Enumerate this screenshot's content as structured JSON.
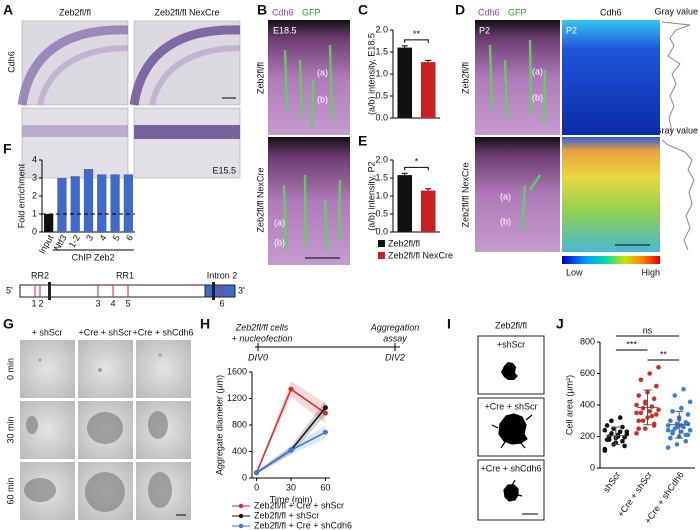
{
  "figure": {
    "letters": [
      "A",
      "B",
      "C",
      "D",
      "E",
      "F",
      "G",
      "H",
      "I",
      "J"
    ],
    "A": {
      "stain": "Cdh6",
      "col_titles": [
        "Zeb2fl/fl",
        "Zeb2fl/fl NexCre"
      ],
      "stage": "E15.5"
    },
    "B": {
      "channels": [
        "Cdh6",
        "GFP"
      ],
      "stage": "E18.5",
      "row_labels": [
        "Zeb2fl/fl",
        "Zeb2fl/fl NexCre"
      ],
      "regions": [
        "(a)",
        "(b)"
      ]
    },
    "CE_legend": [
      "Zeb2fl/fl",
      "Zeb2fl/fl NexCre"
    ],
    "D": {
      "channels": [
        "Cdh6",
        "GFP"
      ],
      "stain": "Cdh6",
      "stage": "P2",
      "profile_label": "Gray value",
      "scale": [
        "Low",
        "High"
      ],
      "row_labels": [
        "Zeb2fl/fl",
        "Zeb2fl/fl NexCre"
      ],
      "regions": [
        "(a)",
        "(b)"
      ]
    },
    "F_diagram": {
      "ends": [
        "5'",
        "3'"
      ],
      "regions": [
        "RR2",
        "RR1",
        "Intron 2"
      ],
      "sites": [
        "1",
        "2",
        "3",
        "4",
        "5",
        "6"
      ]
    },
    "G": {
      "columns": [
        "+ shScr",
        "+Cre + shScr",
        "+Cre + shCdh6"
      ],
      "rows": [
        "0 min",
        "30 min",
        "60 min"
      ]
    },
    "H_timeline": {
      "steps": [
        [
          "Zeb2fl/fl cells",
          "+ nucleofection"
        ],
        [
          "Aggregation",
          "assay"
        ]
      ],
      "days": [
        "DIV0",
        "DIV2"
      ]
    },
    "I": {
      "title": "Zeb2fl/fl",
      "rows": [
        "+shScr",
        "+Cre + shScr",
        "+Cre + shCdh6"
      ]
    }
  },
  "chart_data": [
    {
      "type": "bar",
      "ylabel": "(a/b) intensity, E18.5",
      "categories": [
        null,
        null
      ],
      "values": [
        1.6,
        1.27
      ],
      "errors": [
        0.04,
        0.04
      ],
      "colors": [
        "#111111",
        "#cc2020"
      ],
      "ylim": [
        0,
        2
      ],
      "yticks": [
        {
          "value": 0,
          "label": "0.0"
        },
        {
          "value": 0.5,
          "label": "0.5"
        },
        {
          "value": 1,
          "label": "1.0"
        },
        {
          "value": 1.5,
          "label": "1.5"
        },
        {
          "value": 2,
          "label": "2.0"
        }
      ],
      "significance": "**"
    },
    {
      "type": "bar",
      "ylabel": "(a/b) intensity, P2",
      "categories": [
        null,
        null
      ],
      "values": [
        1.58,
        1.15
      ],
      "errors": [
        0.05,
        0.05
      ],
      "colors": [
        "#111111",
        "#cc2020"
      ],
      "ylim": [
        0,
        2
      ],
      "yticks": [
        {
          "value": 0,
          "label": "0.0"
        },
        {
          "value": 0.5,
          "label": "0.5"
        },
        {
          "value": 1,
          "label": "1.0"
        },
        {
          "value": 1.5,
          "label": "1.5"
        },
        {
          "value": 2,
          "label": "2.0"
        }
      ],
      "significance": "*"
    },
    {
      "type": "bar",
      "ylabel": "Fold enrichment",
      "categories": [
        "Input",
        "Ntf3",
        "1-2",
        "3",
        "4",
        "5",
        "6"
      ],
      "group_label": "ChIP Zeb2",
      "values": [
        1,
        3.0,
        3.1,
        3.5,
        3.2,
        3.2,
        3.2
      ],
      "colors": [
        "#111111",
        "#4169c8",
        "#4169c8",
        "#4169c8",
        "#4169c8",
        "#4169c8",
        "#4169c8"
      ],
      "ylim": [
        0,
        4
      ],
      "yticks": [
        0,
        1,
        2,
        3,
        4
      ],
      "reference_line": 1
    },
    {
      "type": "line",
      "xlabel": "Time (min)",
      "ylabel": "Aggregate diameter (µm)",
      "x": [
        0,
        30,
        60
      ],
      "xlim": [
        -4,
        64
      ],
      "xticks": [
        0,
        30,
        60
      ],
      "ylim": [
        0,
        1600
      ],
      "yticks": [
        0,
        400,
        800,
        1200,
        1600
      ],
      "series": [
        {
          "name": "Zeb2fl/fl + Cre + shScr",
          "color": "#d42a2a",
          "values": [
            80,
            1340,
            980
          ],
          "errors": [
            20,
            120,
            150
          ]
        },
        {
          "name": "Zeb2fl/fl + shScr",
          "color": "#111111",
          "values": [
            80,
            420,
            1060
          ],
          "errors": [
            20,
            60,
            110
          ]
        },
        {
          "name": "Zeb2fl/fl + Cre + shCdh6",
          "color": "#3f78d0",
          "values": [
            80,
            420,
            690
          ],
          "errors": [
            20,
            60,
            100
          ]
        }
      ]
    },
    {
      "type": "strip",
      "ylabel": "Cell area (µm²)",
      "categories": [
        "shScr",
        "+Cre + shScr",
        "+Cre + shCdh6"
      ],
      "colors": [
        "#111111",
        "#d42a2a",
        "#3d7fd6"
      ],
      "ylim": [
        0,
        800
      ],
      "yticks": [
        0,
        200,
        400,
        600,
        800
      ],
      "values": [
        [
          120,
          150,
          170,
          180,
          190,
          195,
          200,
          210,
          215,
          220,
          230,
          240,
          250,
          260,
          270,
          160,
          140,
          180,
          200,
          230,
          300,
          320,
          110,
          250
        ],
        [
          220,
          250,
          280,
          300,
          320,
          340,
          350,
          360,
          370,
          380,
          390,
          400,
          420,
          440,
          460,
          480,
          520,
          560,
          600,
          640,
          300,
          330,
          350,
          410,
          270,
          250
        ],
        [
          130,
          150,
          170,
          190,
          200,
          210,
          220,
          230,
          240,
          250,
          260,
          270,
          280,
          290,
          300,
          320,
          340,
          360,
          380,
          420,
          460,
          500,
          240,
          260,
          210,
          190,
          310,
          280,
          230,
          270
        ]
      ],
      "means": [
        205,
        385,
        275
      ],
      "errors": [
        55,
        110,
        85
      ],
      "significance": [
        "ns",
        "***",
        "**"
      ]
    }
  ]
}
